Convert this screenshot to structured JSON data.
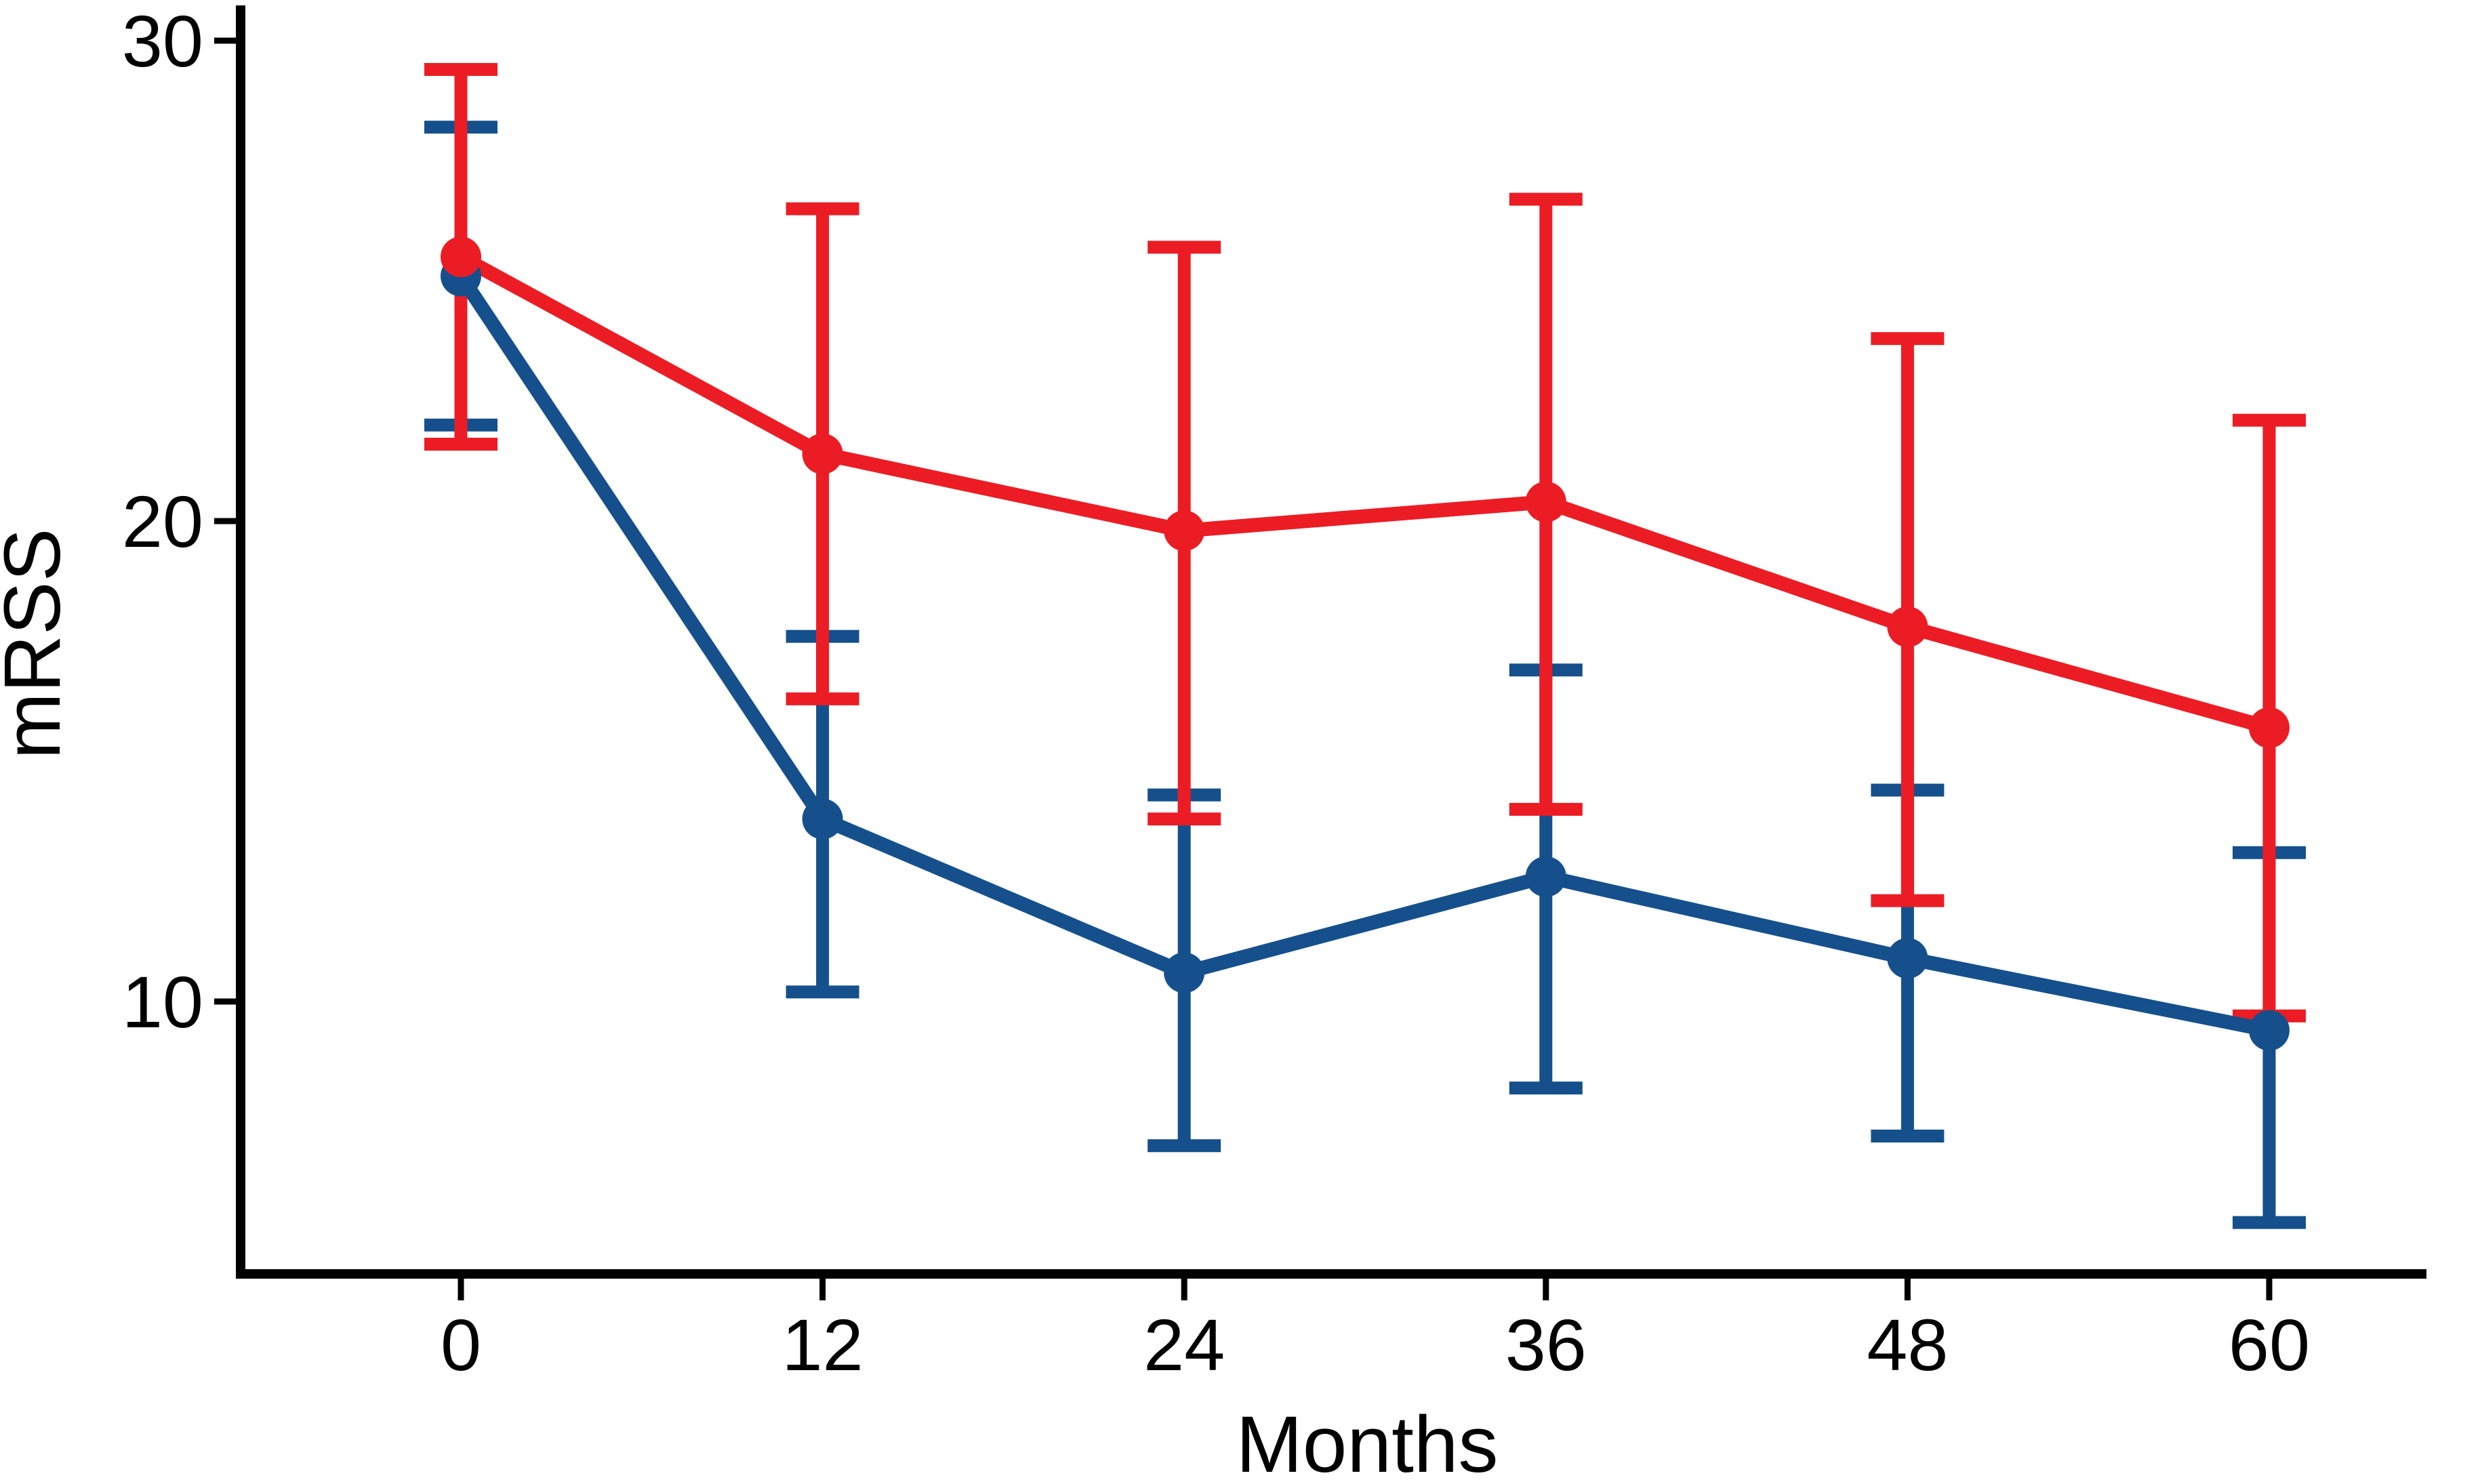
{
  "chart_data": {
    "type": "line",
    "xlabel": "Months",
    "ylabel": "mRSS",
    "x": [
      0,
      12,
      24,
      36,
      48,
      60
    ],
    "x_tick_labels": [
      "0",
      "12",
      "24",
      "36",
      "48",
      "60"
    ],
    "y_ticks": [
      30,
      20,
      10
    ],
    "y_tick_labels": [
      "30",
      "20",
      "10"
    ],
    "xlim_axis": [
      -7.5,
      66.5
    ],
    "ylim_axis": [
      4.3,
      30.7
    ],
    "grid": false,
    "legend_position": "none",
    "axis_color": "#000000",
    "error_bars": "yes",
    "series": [
      {
        "id": "blue-series",
        "color": "#15508C",
        "marker": "circle",
        "values": [
          25.1,
          13.8,
          10.6,
          12.6,
          10.9,
          9.4
        ],
        "ci_low": [
          22.0,
          10.2,
          7.0,
          8.2,
          7.2,
          5.4
        ],
        "ci_high": [
          28.2,
          17.6,
          14.3,
          16.9,
          14.4,
          13.1
        ]
      },
      {
        "id": "red-series",
        "color": "#EC1C24",
        "marker": "circle",
        "values": [
          25.5,
          21.4,
          19.8,
          20.4,
          17.8,
          15.7
        ],
        "ci_low": [
          21.6,
          16.3,
          13.8,
          14.0,
          12.1,
          9.7
        ],
        "ci_high": [
          29.4,
          26.5,
          25.7,
          26.7,
          23.8,
          22.1
        ]
      }
    ]
  }
}
